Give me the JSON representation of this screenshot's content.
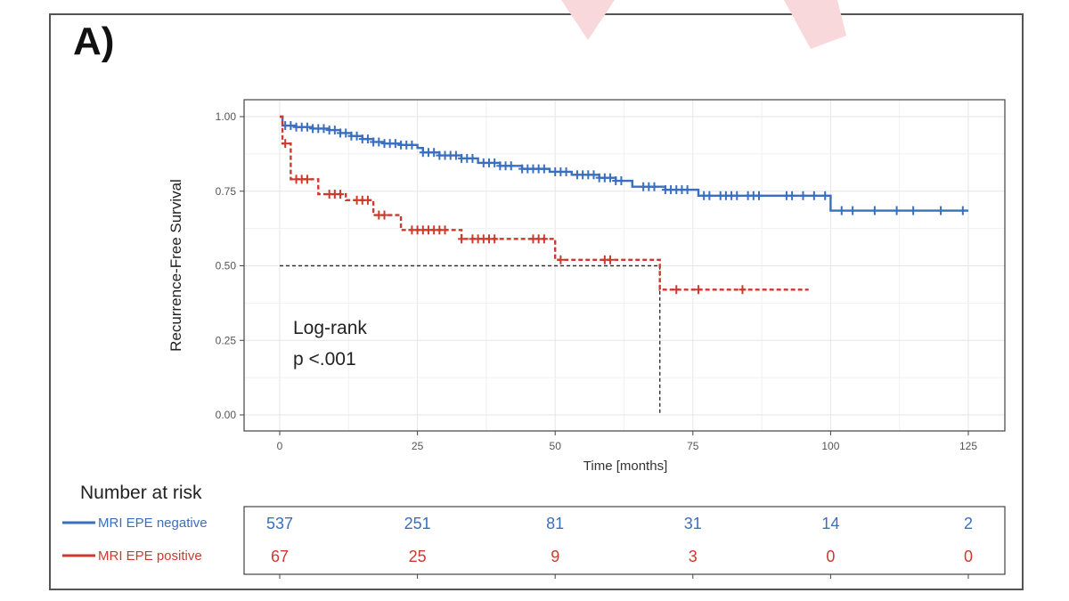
{
  "panel_label": "A)",
  "chart_data": {
    "type": "line",
    "subtype": "kaplan-meier",
    "xlabel": "Time [months]",
    "ylabel": "Recurrence-Free Survival",
    "xlim": [
      0,
      130
    ],
    "ylim": [
      0,
      1.04
    ],
    "x_ticks": [
      0,
      25,
      50,
      75,
      100,
      125
    ],
    "y_ticks": [
      0.0,
      0.25,
      0.5,
      0.75,
      1.0
    ],
    "y_tick_labels": [
      "0.00",
      "0.25",
      "0.50",
      "0.75",
      "1.00"
    ],
    "grid": true,
    "annotation": [
      "Log-rank",
      "p <.001"
    ],
    "median_line": {
      "y": 0.5,
      "x": 69
    },
    "series": [
      {
        "name": "MRI EPE negative",
        "color": "#3a6fbf",
        "dash": false,
        "steps": [
          [
            0,
            1.0
          ],
          [
            0.5,
            0.97
          ],
          [
            3,
            0.965
          ],
          [
            6,
            0.96
          ],
          [
            9,
            0.955
          ],
          [
            11,
            0.945
          ],
          [
            13,
            0.935
          ],
          [
            15,
            0.925
          ],
          [
            17,
            0.915
          ],
          [
            19,
            0.91
          ],
          [
            22,
            0.905
          ],
          [
            25,
            0.895
          ],
          [
            26,
            0.88
          ],
          [
            29,
            0.87
          ],
          [
            33,
            0.86
          ],
          [
            36,
            0.845
          ],
          [
            40,
            0.835
          ],
          [
            44,
            0.825
          ],
          [
            49,
            0.815
          ],
          [
            53,
            0.805
          ],
          [
            58,
            0.795
          ],
          [
            61,
            0.785
          ],
          [
            64,
            0.765
          ],
          [
            70,
            0.755
          ],
          [
            76,
            0.735
          ],
          [
            100,
            0.735
          ],
          [
            100,
            0.685
          ],
          [
            125,
            0.685
          ]
        ],
        "censors": [
          1,
          2,
          3,
          4,
          5,
          6,
          7,
          8,
          9,
          10,
          11,
          12,
          13,
          14,
          15,
          16,
          17,
          18,
          19,
          20,
          21,
          22,
          23,
          24,
          26,
          27,
          28,
          29,
          30,
          31,
          32,
          33,
          34,
          35,
          37,
          38,
          39,
          40,
          41,
          42,
          44,
          45,
          46,
          47,
          48,
          50,
          51,
          52,
          54,
          55,
          56,
          57,
          58,
          59,
          60,
          61,
          62,
          66,
          67,
          68,
          70,
          71,
          72,
          73,
          74,
          77,
          78,
          80,
          81,
          82,
          83,
          85,
          86,
          87,
          92,
          93,
          95,
          97,
          99,
          102,
          104,
          108,
          112,
          115,
          120,
          124
        ]
      },
      {
        "name": "MRI EPE positive",
        "color": "#cc3a2e",
        "dash": true,
        "steps": [
          [
            0,
            1.0
          ],
          [
            0.5,
            0.91
          ],
          [
            2,
            0.79
          ],
          [
            7,
            0.74
          ],
          [
            12,
            0.72
          ],
          [
            17,
            0.67
          ],
          [
            22,
            0.62
          ],
          [
            33,
            0.59
          ],
          [
            50,
            0.52
          ],
          [
            69,
            0.52
          ],
          [
            69,
            0.42
          ],
          [
            96,
            0.42
          ]
        ],
        "censors": [
          1,
          3,
          4,
          5,
          9,
          10,
          11,
          14,
          15,
          16,
          18,
          19,
          24,
          25,
          26,
          27,
          28,
          29,
          30,
          33,
          35,
          36,
          37,
          38,
          39,
          46,
          47,
          48,
          51,
          59,
          60,
          72,
          76,
          84
        ]
      }
    ]
  },
  "risk_table": {
    "title": "Number at risk",
    "times": [
      0,
      25,
      50,
      75,
      100,
      125
    ],
    "rows": [
      {
        "label": "MRI EPE negative",
        "color": "#3a6fbf",
        "values": [
          "537",
          "251",
          "81",
          "31",
          "14",
          "2"
        ]
      },
      {
        "label": "MRI EPE positive",
        "color": "#cc3a2e",
        "values": [
          "67",
          "25",
          "9",
          "3",
          "0",
          "0"
        ]
      }
    ]
  }
}
